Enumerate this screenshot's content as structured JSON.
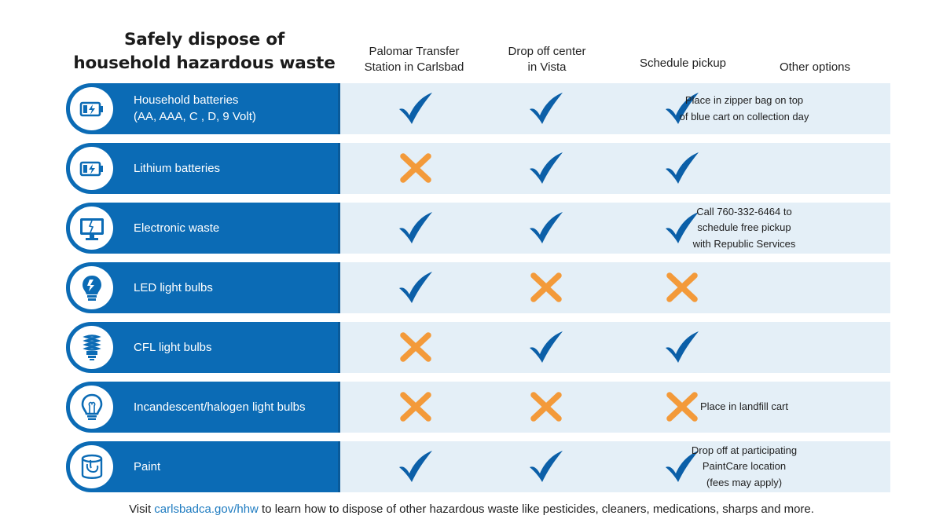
{
  "title": {
    "line1": "Safely dispose of",
    "line2": "household hazardous waste"
  },
  "columns": [
    {
      "line1": "Palomar Transfer",
      "line2": "Station in Carlsbad"
    },
    {
      "line1": "Drop off center",
      "line2": "in Vista"
    },
    {
      "line1": "Schedule pickup",
      "line2": ""
    },
    {
      "line1": "Other options",
      "line2": ""
    }
  ],
  "rows": [
    {
      "icon": "battery-icon",
      "label1": "Household batteries",
      "label2": "(AA, AAA, C , D, 9 Volt)",
      "marks": [
        "check",
        "check",
        "check"
      ],
      "other": [
        "Place in zipper bag on top",
        "of blue cart on collection day"
      ]
    },
    {
      "icon": "battery-icon",
      "label1": "Lithium batteries",
      "label2": "",
      "marks": [
        "cross",
        "check",
        "check"
      ],
      "other": []
    },
    {
      "icon": "monitor-icon",
      "label1": "Electronic waste",
      "label2": "",
      "marks": [
        "check",
        "check",
        "check"
      ],
      "other": [
        "Call 760-332-6464 to",
        "schedule free pickup",
        "with Republic Services"
      ]
    },
    {
      "icon": "led-bulb-icon",
      "label1": "LED light bulbs",
      "label2": "",
      "marks": [
        "check",
        "cross",
        "cross"
      ],
      "other": []
    },
    {
      "icon": "cfl-bulb-icon",
      "label1": "CFL light bulbs",
      "label2": "",
      "marks": [
        "cross",
        "check",
        "check"
      ],
      "other": []
    },
    {
      "icon": "incandescent-bulb-icon",
      "label1": "Incandescent/halogen light bulbs",
      "label2": "",
      "marks": [
        "cross",
        "cross",
        "cross"
      ],
      "other": [
        "Place in landfill cart"
      ]
    },
    {
      "icon": "paint-can-icon",
      "label1": "Paint",
      "label2": "",
      "marks": [
        "check",
        "check",
        "check"
      ],
      "other": [
        "Drop off at participating",
        "PaintCare location",
        "(fees may apply)"
      ]
    }
  ],
  "footer": {
    "prefix": "Visit ",
    "link": "carlsbadca.gov/hhw",
    "suffix": " to learn how to dispose of other hazardous waste like pesticides, cleaners, medications, sharps and more."
  },
  "colors": {
    "brand_blue": "#0b6bb5",
    "panel": "#e4eff7",
    "check": "#0b5fa8",
    "cross": "#f39a3a",
    "link": "#1f7cc1"
  }
}
